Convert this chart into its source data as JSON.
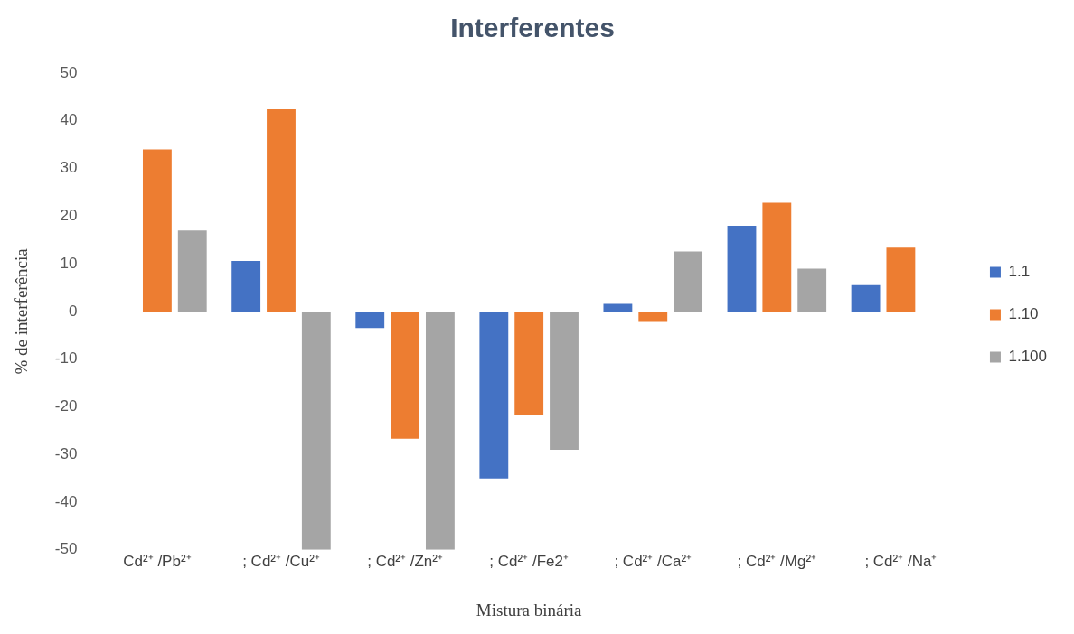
{
  "chart_data": {
    "type": "bar",
    "title": "Interferentes",
    "xlabel": "Mistura binária",
    "ylabel": "% de interferência",
    "categories": [
      "Cd²⁺ /Pb²⁺",
      "; Cd²⁺ /Cu²⁺",
      "; Cd²⁺ /Zn²⁺",
      "; Cd²⁺ /Fe2⁺",
      "; Cd²⁺ /Ca²⁺",
      "; Cd²⁺ /Mg²⁺",
      "; Cd²⁺ /Na⁺"
    ],
    "series": [
      {
        "name": "1.1",
        "color": "#4472c4",
        "values": [
          null,
          10.6,
          -3.5,
          -35,
          1.6,
          18,
          5.5
        ]
      },
      {
        "name": "1.10",
        "color": "#ed7d31",
        "values": [
          34,
          42.4,
          -26.7,
          -21.6,
          -2,
          22.8,
          13.4
        ]
      },
      {
        "name": "1.100",
        "color": "#a5a5a5",
        "values": [
          17,
          -50,
          -50,
          -29,
          12.6,
          9,
          null
        ]
      }
    ],
    "ylim": [
      -50,
      50
    ],
    "yticks": [
      -50,
      -40,
      -30,
      -20,
      -10,
      0,
      10,
      20,
      30,
      40,
      50
    ],
    "grid": false,
    "legend": "right"
  }
}
